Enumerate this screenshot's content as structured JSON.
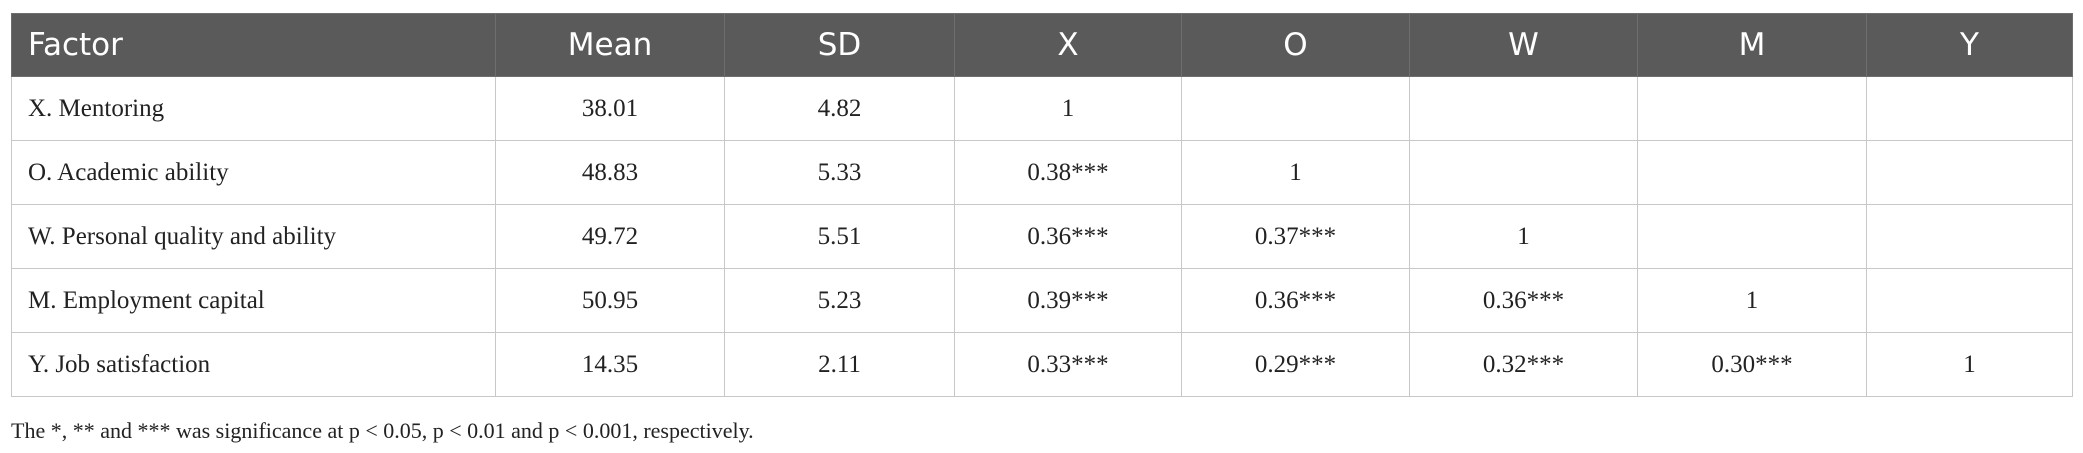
{
  "table": {
    "headers": [
      "Factor",
      "Mean",
      "SD",
      "X",
      "O",
      "W",
      "M",
      "Y"
    ],
    "rows": [
      [
        "X. Mentoring",
        "38.01",
        "4.82",
        "1"
      ],
      [
        "O. Academic ability",
        "48.83",
        "5.33",
        "0.38***",
        "1"
      ],
      [
        "W. Personal quality and ability",
        "49.72",
        "5.51",
        "0.36***",
        "0.37***",
        "1"
      ],
      [
        "M. Employment capital",
        "50.95",
        "5.23",
        "0.39***",
        "0.36***",
        "0.36***",
        "1"
      ],
      [
        "Y. Job satisfaction",
        "14.35",
        "2.11",
        "0.33***",
        "0.29***",
        "0.32***",
        "0.30***",
        "1"
      ]
    ]
  },
  "footnote": "The *, ** and *** was significance at p < 0.05, p < 0.01 and p < 0.001, respectively."
}
